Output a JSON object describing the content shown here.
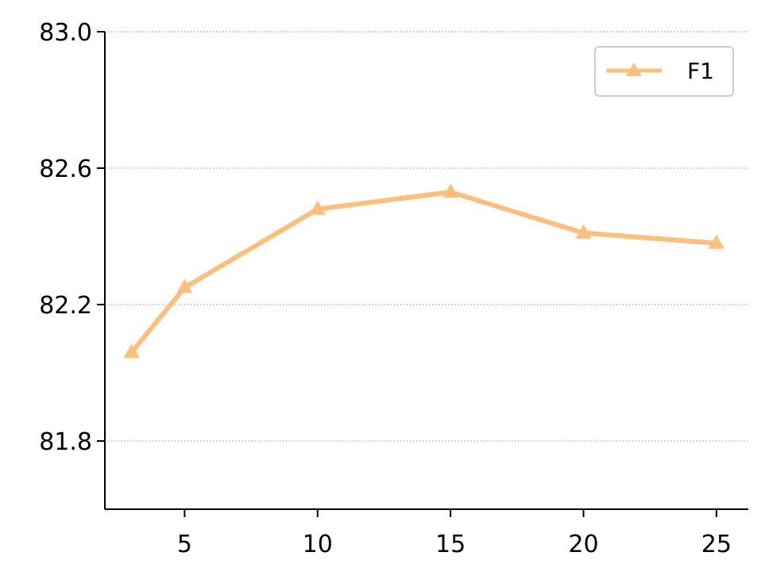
{
  "chart_data": {
    "type": "line",
    "title": "",
    "xlabel": "",
    "ylabel": "",
    "x": [
      3,
      5,
      10,
      15,
      20,
      25
    ],
    "series": [
      {
        "name": "F1",
        "values": [
          82.06,
          82.25,
          82.48,
          82.53,
          82.41,
          82.38
        ]
      }
    ],
    "xticks": [
      5,
      10,
      15,
      20,
      25
    ],
    "xtick_labels": [
      "5",
      "10",
      "15",
      "20",
      "25"
    ],
    "yticks": [
      81.8,
      82.2,
      82.6,
      83.0
    ],
    "ytick_labels": [
      "81.8",
      "82.2",
      "82.6",
      "83.0"
    ],
    "xlim": [
      2,
      26.2
    ],
    "ylim": [
      81.6,
      83.0
    ],
    "grid": "horizontal dotted",
    "legend_position": "top-right",
    "marker": "triangle",
    "color": "#ffbe7a"
  }
}
